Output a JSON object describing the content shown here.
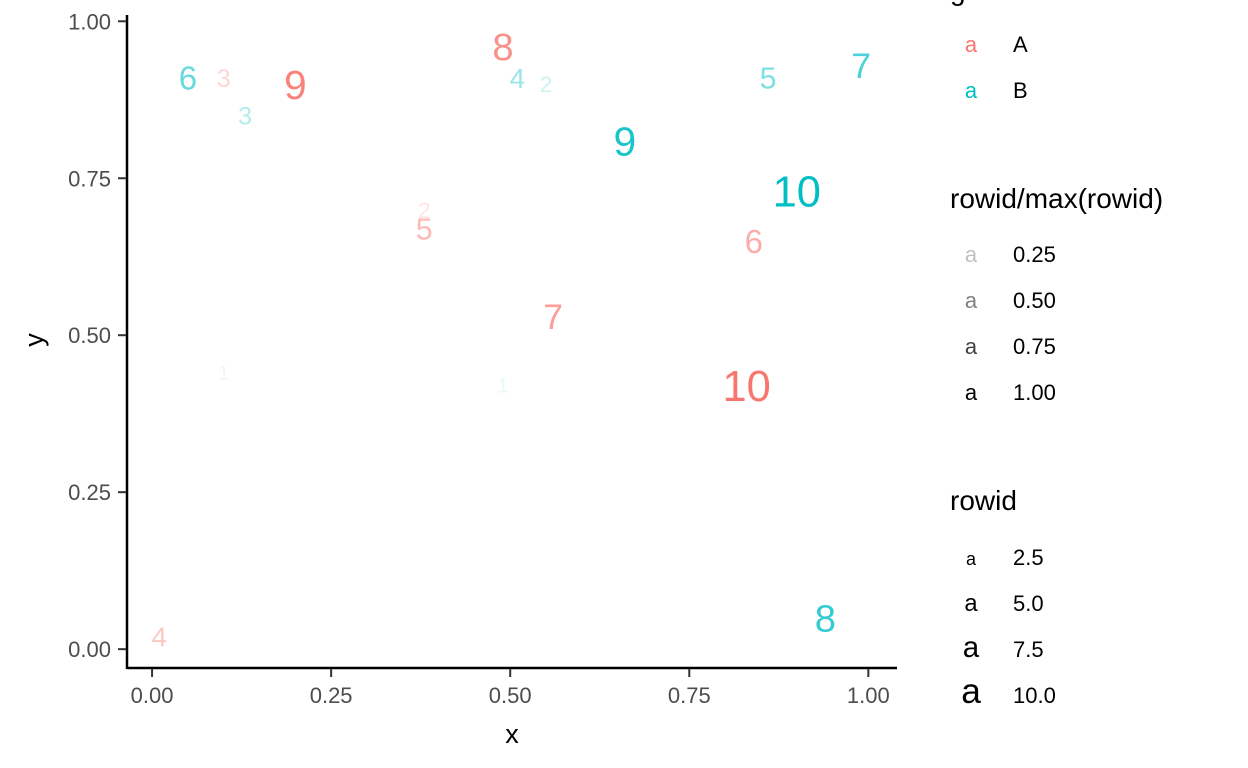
{
  "chart_data": {
    "type": "scatter",
    "title": "",
    "xlabel": "x",
    "ylabel": "y",
    "xlim": [
      -0.035,
      1.04
    ],
    "ylim": [
      -0.03,
      1.01
    ],
    "x_ticks": [
      "0.00",
      "0.25",
      "0.50",
      "0.75",
      "1.00"
    ],
    "y_ticks": [
      "0.00",
      "0.25",
      "0.50",
      "0.75",
      "1.00"
    ],
    "grid": false,
    "legend_position": "right",
    "series": [
      {
        "name": "A",
        "color": "#F8766D",
        "points": [
          {
            "x": 0.1,
            "y": 0.44,
            "label": "1"
          },
          {
            "x": 0.38,
            "y": 0.7,
            "label": "2"
          },
          {
            "x": 0.1,
            "y": 0.91,
            "label": "3"
          },
          {
            "x": 0.01,
            "y": 0.02,
            "label": "4"
          },
          {
            "x": 0.38,
            "y": 0.67,
            "label": "5"
          },
          {
            "x": 0.84,
            "y": 0.65,
            "label": "6"
          },
          {
            "x": 0.56,
            "y": 0.53,
            "label": "7"
          },
          {
            "x": 0.49,
            "y": 0.96,
            "label": "8"
          },
          {
            "x": 0.2,
            "y": 0.9,
            "label": "9"
          },
          {
            "x": 0.83,
            "y": 0.42,
            "label": "10"
          }
        ]
      },
      {
        "name": "B",
        "color": "#00BFC4",
        "points": [
          {
            "x": 0.49,
            "y": 0.42,
            "label": "1"
          },
          {
            "x": 0.55,
            "y": 0.9,
            "label": "2"
          },
          {
            "x": 0.13,
            "y": 0.85,
            "label": "3"
          },
          {
            "x": 0.51,
            "y": 0.91,
            "label": "4"
          },
          {
            "x": 0.86,
            "y": 0.91,
            "label": "5"
          },
          {
            "x": 0.05,
            "y": 0.91,
            "label": "6"
          },
          {
            "x": 0.99,
            "y": 0.93,
            "label": "7"
          },
          {
            "x": 0.94,
            "y": 0.05,
            "label": "8"
          },
          {
            "x": 0.66,
            "y": 0.81,
            "label": "9"
          },
          {
            "x": 0.9,
            "y": 0.73,
            "label": "10"
          }
        ]
      }
    ],
    "legends": [
      {
        "title": "g",
        "type": "colour",
        "entries": [
          {
            "key": "a",
            "label": "A",
            "color": "#F8766D"
          },
          {
            "key": "a",
            "label": "B",
            "color": "#00BFC4"
          }
        ]
      },
      {
        "title": "rowid/max(rowid)",
        "type": "alpha",
        "entries": [
          {
            "key": "a",
            "label": "0.25",
            "value": 0.25
          },
          {
            "key": "a",
            "label": "0.50",
            "value": 0.5
          },
          {
            "key": "a",
            "label": "0.75",
            "value": 0.75
          },
          {
            "key": "a",
            "label": "1.00",
            "value": 1.0
          }
        ]
      },
      {
        "title": "rowid",
        "type": "size",
        "entries": [
          {
            "key": "a",
            "label": "2.5",
            "value": 2.5
          },
          {
            "key": "a",
            "label": "5.0",
            "value": 5.0
          },
          {
            "key": "a",
            "label": "7.5",
            "value": 7.5
          },
          {
            "key": "a",
            "label": "10.0",
            "value": 10.0
          }
        ]
      }
    ]
  }
}
